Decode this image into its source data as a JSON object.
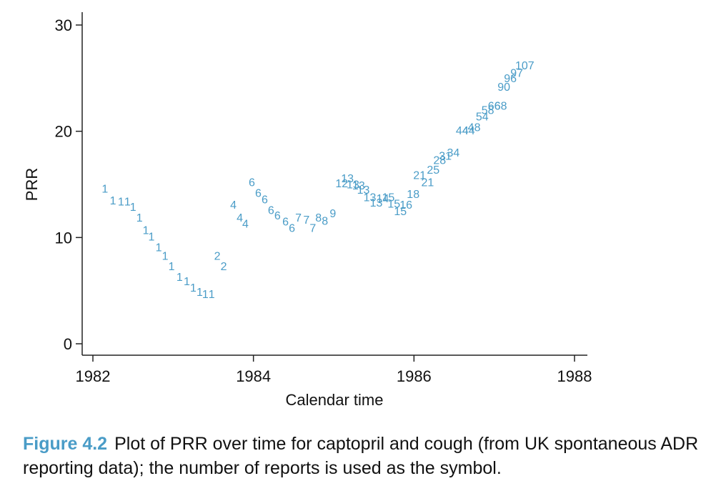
{
  "chart_data": {
    "type": "scatter",
    "xlabel": "Calendar time",
    "ylabel": "PRR",
    "xlim": [
      1982,
      1988
    ],
    "ylim": [
      0,
      30
    ],
    "xticks": [
      "1982",
      "1984",
      "1986",
      "1988"
    ],
    "yticks": [
      "0",
      "10",
      "20",
      "30"
    ],
    "grid": false,
    "marker": "number of reports as text label",
    "color": "#4a9cc7",
    "points": [
      {
        "x": 1982.15,
        "y": 14.5,
        "label": "1"
      },
      {
        "x": 1982.25,
        "y": 13.4,
        "label": "1"
      },
      {
        "x": 1982.35,
        "y": 13.3,
        "label": "1"
      },
      {
        "x": 1982.43,
        "y": 13.3,
        "label": "1"
      },
      {
        "x": 1982.5,
        "y": 12.8,
        "label": "1"
      },
      {
        "x": 1982.58,
        "y": 11.8,
        "label": "1"
      },
      {
        "x": 1982.66,
        "y": 10.6,
        "label": "1"
      },
      {
        "x": 1982.73,
        "y": 10.0,
        "label": "1"
      },
      {
        "x": 1982.82,
        "y": 9.0,
        "label": "1"
      },
      {
        "x": 1982.9,
        "y": 8.2,
        "label": "1"
      },
      {
        "x": 1982.98,
        "y": 7.2,
        "label": "1"
      },
      {
        "x": 1983.08,
        "y": 6.2,
        "label": "1"
      },
      {
        "x": 1983.17,
        "y": 5.8,
        "label": "1"
      },
      {
        "x": 1983.25,
        "y": 5.2,
        "label": "1"
      },
      {
        "x": 1983.33,
        "y": 4.8,
        "label": "1"
      },
      {
        "x": 1983.4,
        "y": 4.6,
        "label": "1"
      },
      {
        "x": 1983.48,
        "y": 4.6,
        "label": "1"
      },
      {
        "x": 1983.55,
        "y": 8.2,
        "label": "2"
      },
      {
        "x": 1983.63,
        "y": 7.2,
        "label": "2"
      },
      {
        "x": 1983.75,
        "y": 13.0,
        "label": "4"
      },
      {
        "x": 1983.83,
        "y": 11.8,
        "label": "4"
      },
      {
        "x": 1983.9,
        "y": 11.2,
        "label": "4"
      },
      {
        "x": 1983.98,
        "y": 15.1,
        "label": "6"
      },
      {
        "x": 1984.06,
        "y": 14.1,
        "label": "6"
      },
      {
        "x": 1984.14,
        "y": 13.5,
        "label": "6"
      },
      {
        "x": 1984.22,
        "y": 12.5,
        "label": "6"
      },
      {
        "x": 1984.3,
        "y": 12.0,
        "label": "6"
      },
      {
        "x": 1984.4,
        "y": 11.4,
        "label": "6"
      },
      {
        "x": 1984.48,
        "y": 10.8,
        "label": "6"
      },
      {
        "x": 1984.56,
        "y": 11.8,
        "label": "7"
      },
      {
        "x": 1984.66,
        "y": 11.6,
        "label": "7"
      },
      {
        "x": 1984.74,
        "y": 10.8,
        "label": "7"
      },
      {
        "x": 1984.81,
        "y": 11.8,
        "label": "8"
      },
      {
        "x": 1984.89,
        "y": 11.5,
        "label": "8"
      },
      {
        "x": 1984.99,
        "y": 12.2,
        "label": "9"
      },
      {
        "x": 1985.1,
        "y": 15.0,
        "label": "12"
      },
      {
        "x": 1985.17,
        "y": 15.5,
        "label": "13"
      },
      {
        "x": 1985.24,
        "y": 14.9,
        "label": "13"
      },
      {
        "x": 1985.31,
        "y": 14.8,
        "label": "13"
      },
      {
        "x": 1985.37,
        "y": 14.4,
        "label": "13"
      },
      {
        "x": 1985.45,
        "y": 13.7,
        "label": "13"
      },
      {
        "x": 1985.53,
        "y": 13.2,
        "label": "13"
      },
      {
        "x": 1985.61,
        "y": 13.6,
        "label": "14"
      },
      {
        "x": 1985.68,
        "y": 13.7,
        "label": "15"
      },
      {
        "x": 1985.75,
        "y": 13.1,
        "label": "15"
      },
      {
        "x": 1985.83,
        "y": 12.4,
        "label": "15"
      },
      {
        "x": 1985.9,
        "y": 13.0,
        "label": "16"
      },
      {
        "x": 1985.99,
        "y": 14.0,
        "label": "18"
      },
      {
        "x": 1986.07,
        "y": 15.8,
        "label": "21"
      },
      {
        "x": 1986.17,
        "y": 15.1,
        "label": "21"
      },
      {
        "x": 1986.24,
        "y": 16.3,
        "label": "25"
      },
      {
        "x": 1986.32,
        "y": 17.2,
        "label": "28"
      },
      {
        "x": 1986.39,
        "y": 17.6,
        "label": "31"
      },
      {
        "x": 1986.49,
        "y": 17.9,
        "label": "34"
      },
      {
        "x": 1986.6,
        "y": 20.0,
        "label": "44"
      },
      {
        "x": 1986.68,
        "y": 20.0,
        "label": "44"
      },
      {
        "x": 1986.75,
        "y": 20.3,
        "label": "48"
      },
      {
        "x": 1986.85,
        "y": 21.3,
        "label": "54"
      },
      {
        "x": 1986.92,
        "y": 21.9,
        "label": "58"
      },
      {
        "x": 1987.0,
        "y": 22.3,
        "label": "66"
      },
      {
        "x": 1987.08,
        "y": 22.3,
        "label": "68"
      },
      {
        "x": 1987.12,
        "y": 24.1,
        "label": "90"
      },
      {
        "x": 1987.2,
        "y": 24.9,
        "label": "96"
      },
      {
        "x": 1987.28,
        "y": 25.4,
        "label": "97"
      },
      {
        "x": 1987.38,
        "y": 26.1,
        "label": "107"
      }
    ]
  },
  "caption": {
    "label": "Figure 4.2",
    "text": "Plot of PRR over time for captopril and cough (from UK spontaneous ADR reporting data); the number of reports is used as the symbol."
  }
}
